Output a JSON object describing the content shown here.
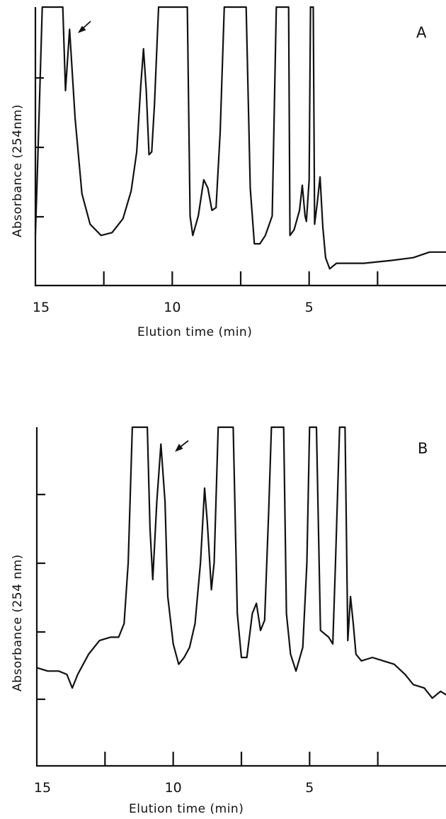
{
  "chart_data": [
    {
      "type": "line",
      "panel": "A",
      "xlabel": "Elution time   (min)",
      "ylabel": "Absorbance (254nm)",
      "xlim": [
        15,
        0
      ],
      "x_ticks": [
        15,
        12.5,
        10,
        7.5,
        5,
        2.5
      ],
      "x_tick_labels": [
        "15",
        "10",
        "5"
      ],
      "x_tick_label_values": [
        15,
        10,
        5
      ],
      "grid": false,
      "series": [
        {
          "points": [
            [
              15.0,
              0.18
            ],
            [
              14.9,
              0.5
            ],
            [
              14.75,
              1.05
            ],
            [
              14.0,
              1.05
            ],
            [
              13.9,
              0.7
            ],
            [
              13.75,
              0.92
            ],
            [
              13.55,
              0.6
            ],
            [
              13.3,
              0.33
            ],
            [
              13.0,
              0.22
            ],
            [
              12.6,
              0.18
            ],
            [
              12.2,
              0.19
            ],
            [
              11.8,
              0.24
            ],
            [
              11.5,
              0.34
            ],
            [
              11.3,
              0.48
            ],
            [
              11.15,
              0.72
            ],
            [
              11.05,
              0.85
            ],
            [
              10.95,
              0.7
            ],
            [
              10.85,
              0.47
            ],
            [
              10.75,
              0.48
            ],
            [
              10.65,
              0.65
            ],
            [
              10.5,
              1.05
            ],
            [
              9.45,
              1.05
            ],
            [
              9.35,
              0.25
            ],
            [
              9.25,
              0.18
            ],
            [
              9.05,
              0.25
            ],
            [
              8.85,
              0.38
            ],
            [
              8.7,
              0.35
            ],
            [
              8.55,
              0.27
            ],
            [
              8.4,
              0.28
            ],
            [
              8.25,
              0.55
            ],
            [
              8.1,
              1.05
            ],
            [
              7.3,
              1.05
            ],
            [
              7.15,
              0.35
            ],
            [
              7.0,
              0.15
            ],
            [
              6.8,
              0.15
            ],
            [
              6.6,
              0.18
            ],
            [
              6.35,
              0.25
            ],
            [
              6.2,
              1.05
            ],
            [
              5.75,
              1.05
            ],
            [
              5.7,
              0.18
            ],
            [
              5.55,
              0.2
            ],
            [
              5.35,
              0.27
            ],
            [
              5.25,
              0.36
            ],
            [
              5.15,
              0.25
            ],
            [
              5.1,
              0.23
            ],
            [
              5.0,
              0.38
            ],
            [
              4.95,
              1.05
            ],
            [
              4.85,
              1.05
            ],
            [
              4.8,
              0.22
            ],
            [
              4.7,
              0.3
            ],
            [
              4.6,
              0.39
            ],
            [
              4.5,
              0.21
            ],
            [
              4.4,
              0.1
            ],
            [
              4.25,
              0.06
            ],
            [
              4.0,
              0.08
            ],
            [
              3.0,
              0.08
            ],
            [
              2.0,
              0.09
            ],
            [
              1.2,
              0.1
            ],
            [
              0.6,
              0.12
            ],
            [
              0.0,
              0.12
            ]
          ]
        }
      ],
      "annotations": [
        "A"
      ]
    },
    {
      "type": "line",
      "panel": "B",
      "xlabel": "Elution time  (min)",
      "ylabel": "Absorbance (254 nm)",
      "xlim": [
        15,
        0
      ],
      "x_ticks": [
        15,
        12.5,
        10,
        7.5,
        5,
        2.5
      ],
      "x_tick_labels": [
        "15",
        "10",
        "5"
      ],
      "x_tick_label_values": [
        15,
        10,
        5
      ],
      "grid": false,
      "series": [
        {
          "points": [
            [
              15.0,
              0.29
            ],
            [
              14.6,
              0.28
            ],
            [
              14.2,
              0.28
            ],
            [
              13.9,
              0.27
            ],
            [
              13.7,
              0.23
            ],
            [
              13.5,
              0.27
            ],
            [
              13.1,
              0.33
            ],
            [
              12.7,
              0.37
            ],
            [
              12.3,
              0.38
            ],
            [
              12.0,
              0.38
            ],
            [
              11.8,
              0.42
            ],
            [
              11.65,
              0.6
            ],
            [
              11.5,
              1.05
            ],
            [
              10.95,
              1.05
            ],
            [
              10.85,
              0.7
            ],
            [
              10.75,
              0.55
            ],
            [
              10.6,
              0.78
            ],
            [
              10.45,
              0.95
            ],
            [
              10.3,
              0.78
            ],
            [
              10.2,
              0.5
            ],
            [
              10.0,
              0.36
            ],
            [
              9.8,
              0.3
            ],
            [
              9.6,
              0.32
            ],
            [
              9.4,
              0.35
            ],
            [
              9.2,
              0.42
            ],
            [
              9.0,
              0.6
            ],
            [
              8.85,
              0.82
            ],
            [
              8.75,
              0.72
            ],
            [
              8.6,
              0.52
            ],
            [
              8.5,
              0.6
            ],
            [
              8.35,
              1.05
            ],
            [
              7.8,
              1.05
            ],
            [
              7.65,
              0.45
            ],
            [
              7.5,
              0.32
            ],
            [
              7.3,
              0.32
            ],
            [
              7.1,
              0.45
            ],
            [
              6.95,
              0.48
            ],
            [
              6.8,
              0.4
            ],
            [
              6.65,
              0.43
            ],
            [
              6.5,
              0.75
            ],
            [
              6.4,
              1.05
            ],
            [
              5.95,
              1.05
            ],
            [
              5.85,
              0.45
            ],
            [
              5.7,
              0.33
            ],
            [
              5.5,
              0.28
            ],
            [
              5.25,
              0.35
            ],
            [
              5.1,
              0.6
            ],
            [
              5.0,
              1.05
            ],
            [
              4.75,
              1.05
            ],
            [
              4.6,
              0.4
            ],
            [
              4.3,
              0.38
            ],
            [
              4.15,
              0.36
            ],
            [
              4.05,
              0.6
            ],
            [
              3.9,
              1.05
            ],
            [
              3.7,
              1.05
            ],
            [
              3.6,
              0.37
            ],
            [
              3.5,
              0.5
            ],
            [
              3.4,
              0.42
            ],
            [
              3.3,
              0.33
            ],
            [
              3.1,
              0.31
            ],
            [
              2.7,
              0.32
            ],
            [
              2.3,
              0.31
            ],
            [
              1.9,
              0.3
            ],
            [
              1.5,
              0.27
            ],
            [
              1.2,
              0.24
            ],
            [
              0.8,
              0.23
            ],
            [
              0.5,
              0.2
            ],
            [
              0.2,
              0.22
            ],
            [
              0.0,
              0.21
            ]
          ]
        }
      ],
      "annotations": [
        "B"
      ]
    }
  ]
}
